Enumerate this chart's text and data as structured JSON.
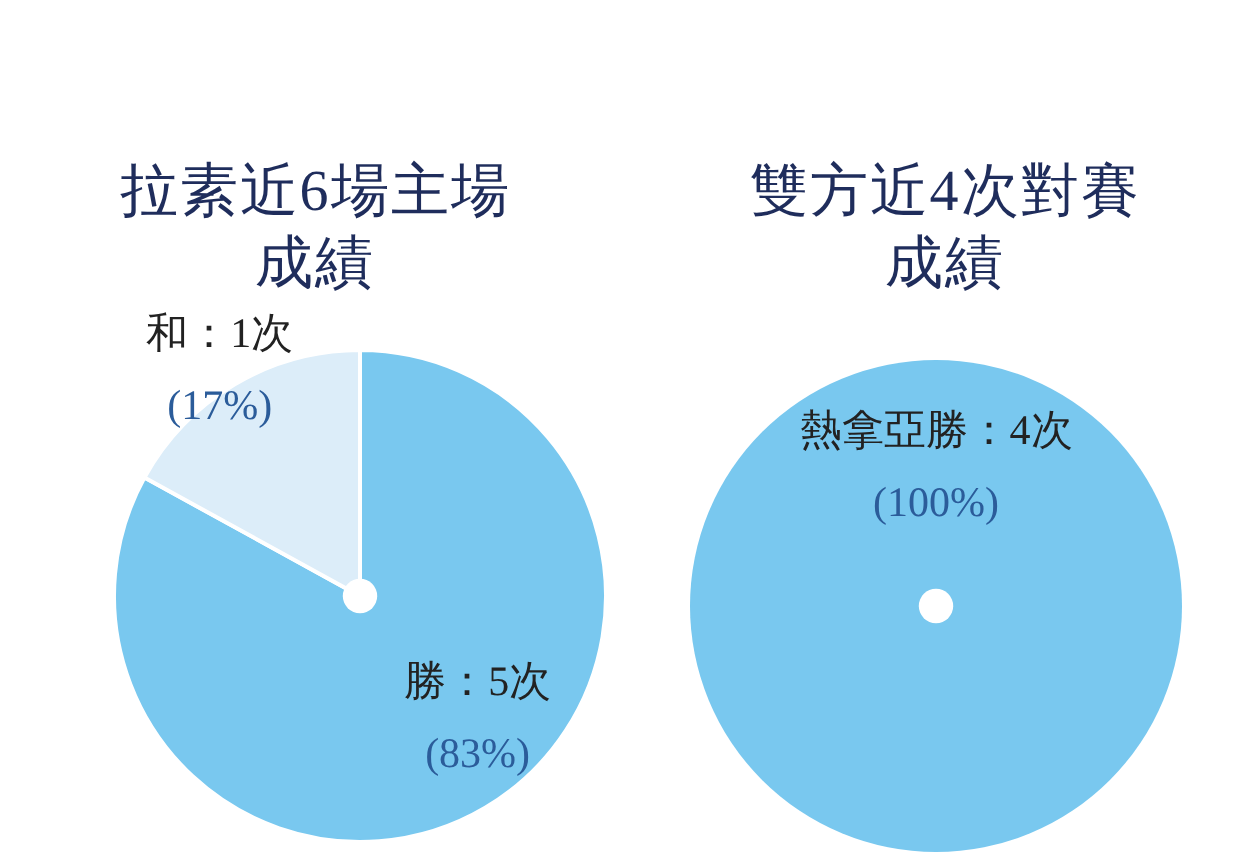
{
  "chart_data": [
    {
      "type": "pie",
      "title": "拉素近6場主場成績",
      "categories": [
        "勝：5次",
        "和：1次"
      ],
      "values": [
        83,
        17
      ],
      "value_labels": [
        "(83%)",
        "(17%)"
      ],
      "colors": [
        "#79c8ef",
        "#dcedf9"
      ]
    },
    {
      "type": "pie",
      "title": "雙方近4次對賽成績",
      "categories": [
        "熱拿亞勝：4次"
      ],
      "values": [
        100
      ],
      "value_labels": [
        "(100%)"
      ],
      "colors": [
        "#79c8ef"
      ]
    }
  ]
}
